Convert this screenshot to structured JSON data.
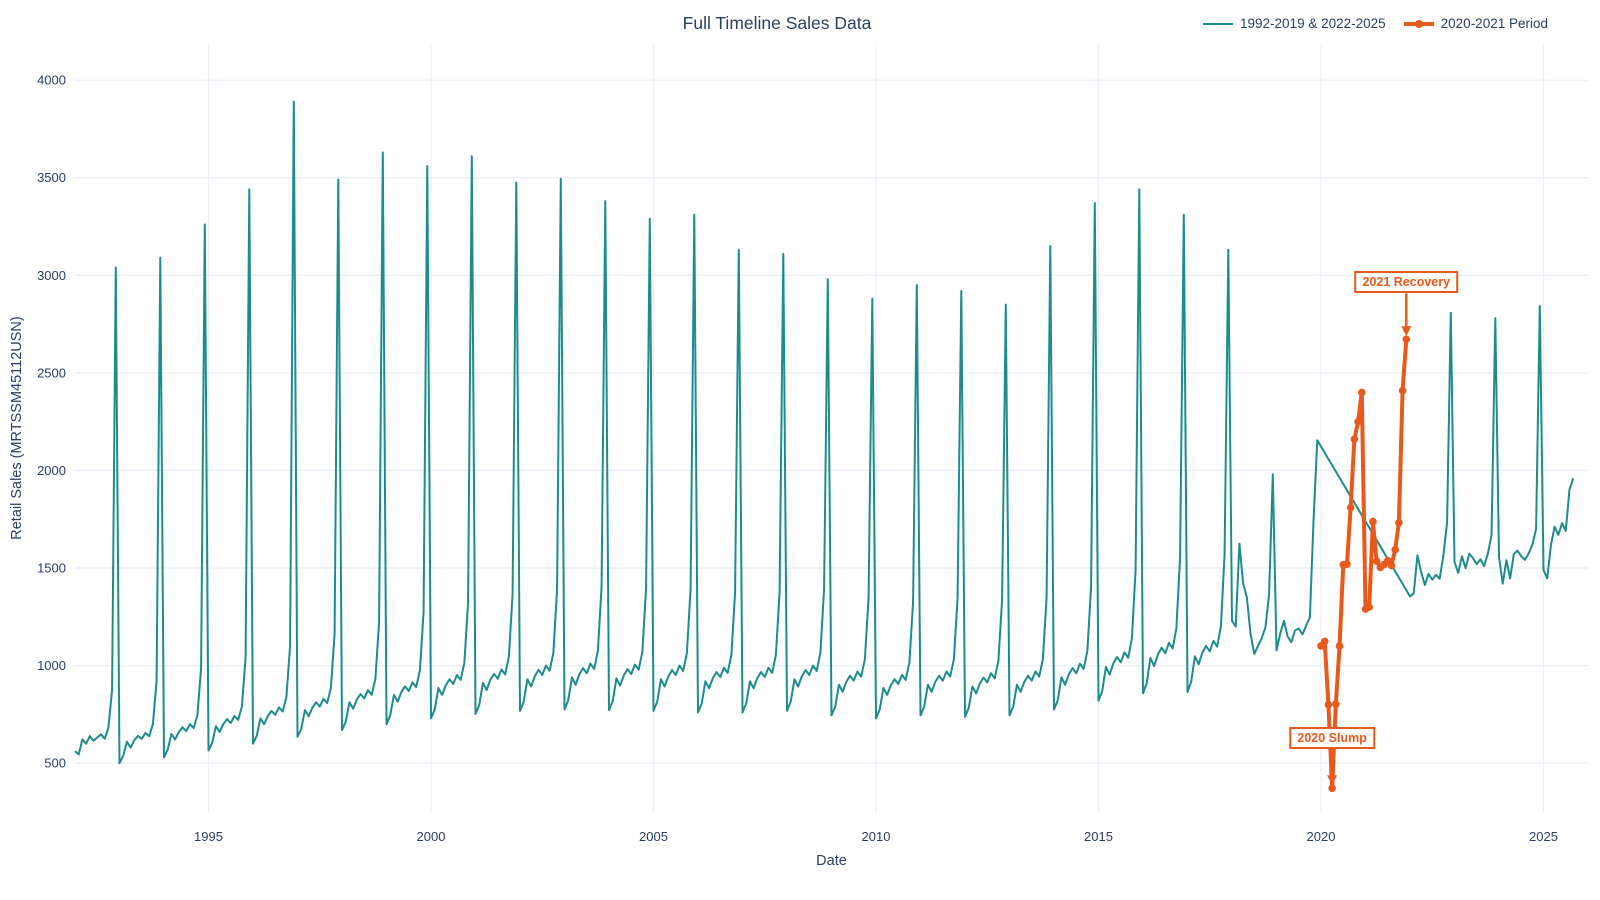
{
  "title": "Full Timeline Sales Data",
  "legend": {
    "items": [
      {
        "label": "1992-2019 & 2022-2025",
        "color": "#1E8C8C",
        "style": "line"
      },
      {
        "label": "2020-2021 Period",
        "color": "#E8591C",
        "style": "line+marker"
      }
    ]
  },
  "axes": {
    "x": {
      "label": "Date",
      "ticks": [
        1995,
        2000,
        2005,
        2010,
        2015,
        2020,
        2025
      ],
      "range": [
        1992,
        2026
      ]
    },
    "y": {
      "label": "Retail Sales (MRTSSM45112USN)",
      "ticks": [
        500,
        1000,
        1500,
        2000,
        2500,
        3000,
        3500,
        4000
      ],
      "range": [
        250,
        4180
      ]
    }
  },
  "colors": {
    "teal": "#1E8C8C",
    "orange": "#E8591C",
    "grid": "#EBF0F8",
    "text": "#2a3f5f",
    "background": "#ffffff"
  },
  "chart_data": {
    "type": "line",
    "title": "Full Timeline Sales Data",
    "xlabel": "Date",
    "ylabel": "Retail Sales (MRTSSM45112USN)",
    "x_unit": "monthly (decimal years)",
    "grid": true,
    "legend_position": "top-right",
    "series": [
      {
        "name": "1992-2019 & 2022-2025",
        "color": "#1E8C8C",
        "width": 2,
        "markers": false,
        "note": "two segments joined by a straight connector across the 2020-2021 gap",
        "segments": [
          {
            "start_year": 1992,
            "values": [
              562,
              545,
              622,
              600,
              639,
              615,
              632,
              648,
              625,
              682,
              875,
              3040,
              500,
              538,
              610,
              580,
              618,
              640,
              625,
              655,
              638,
              700,
              920,
              3090,
              530,
              570,
              650,
              622,
              660,
              684,
              665,
              700,
              680,
              745,
              985,
              3260,
              565,
              605,
              690,
              660,
              700,
              726,
              706,
              742,
              722,
              790,
              1040,
              3440,
              600,
              640,
              730,
              700,
              742,
              768,
              748,
              786,
              765,
              838,
              1100,
              3890,
              635,
              675,
              772,
              740,
              784,
              812,
              790,
              830,
              808,
              885,
              1160,
              3490,
              670,
              712,
              812,
              780,
              826,
              854,
              832,
              874,
              851,
              932,
              1220,
              3630,
              700,
              745,
              850,
              815,
              864,
              894,
              870,
              914,
              890,
              975,
              1275,
              3560,
              730,
              775,
              885,
              850,
              900,
              930,
              906,
              952,
              927,
              1015,
              1325,
              3610,
              752,
              798,
              912,
              875,
              927,
              958,
              933,
              980,
              955,
              1045,
              1365,
              3475,
              768,
              815,
              930,
              893,
              946,
              978,
              952,
              1000,
              974,
              1066,
              1392,
              3495,
              775,
              822,
              940,
              902,
              955,
              987,
              961,
              1010,
              983,
              1076,
              1405,
              3380,
              772,
              818,
              935,
              898,
              950,
              982,
              957,
              1005,
              979,
              1071,
              1398,
              3290,
              768,
              815,
              930,
              893,
              945,
              977,
              952,
              1000,
              973,
              1065,
              1391,
              3310,
              760,
              806,
              920,
              884,
              936,
              967,
              942,
              989,
              963,
              1054,
              1376,
              3130,
              760,
              806,
              920,
              884,
              936,
              967,
              942,
              989,
              963,
              1054,
              1376,
              3110,
              768,
              815,
              930,
              893,
              945,
              977,
              952,
              1000,
              973,
              1065,
              1391,
              2980,
              745,
              790,
              902,
              866,
              917,
              948,
              923,
              970,
              944,
              1033,
              1349,
              2880,
              730,
              775,
              885,
              850,
              900,
              930,
              906,
              952,
              927,
              1015,
              1325,
              2950,
              745,
              790,
              902,
              866,
              917,
              948,
              923,
              970,
              944,
              1033,
              1349,
              2920,
              738,
              783,
              893,
              858,
              908,
              939,
              914,
              961,
              935,
              1024,
              1337,
              2850,
              745,
              790,
              902,
              866,
              917,
              948,
              923,
              970,
              944,
              1033,
              1349,
              3150,
              775,
              822,
              940,
              902,
              955,
              987,
              961,
              1010,
              983,
              1076,
              1405,
              3370,
              820,
              870,
              993,
              954,
              1010,
              1044,
              1017,
              1068,
              1040,
              1139,
              1487,
              3440,
              858,
              910,
              1039,
              998,
              1056,
              1092,
              1063,
              1117,
              1088,
              1191,
              1555,
              3310,
              865,
              918,
              1048,
              1007,
              1066,
              1101,
              1073,
              1127,
              1097,
              1201,
              1569,
              3130,
              1230,
              1200,
              1625,
              1420,
              1350,
              1163,
              1060,
              1100,
              1140,
              1195,
              1365,
              1980,
              1078,
              1163,
              1230,
              1150,
              1120,
              1180,
              1190,
              1160,
              1205,
              1248,
              1750,
              2155
            ]
          },
          {
            "start_year": 2022,
            "values": [
              1355,
              1370,
              1565,
              1480,
              1413,
              1470,
              1440,
              1465,
              1445,
              1565,
              1732,
              2808,
              1532,
              1475,
              1560,
              1500,
              1574,
              1550,
              1520,
              1545,
              1510,
              1574,
              1670,
              2780,
              1556,
              1420,
              1540,
              1447,
              1572,
              1589,
              1560,
              1542,
              1575,
              1620,
              1700,
              2843,
              1491,
              1447,
              1617,
              1712,
              1670,
              1730,
              1690,
              1901,
              1960
            ]
          }
        ]
      },
      {
        "name": "2020-2021 Period",
        "color": "#E8591C",
        "width": 4,
        "markers": true,
        "segments": [
          {
            "start_year": 2020,
            "values": [
              1101,
              1124,
              800,
              372,
              803,
              1100,
              1517,
              1520,
              1810,
              2160,
              2250,
              2400,
              1290,
              1300,
              1738,
              1535,
              1503,
              1518,
              1537,
              1513,
              1594,
              1732,
              2409,
              2672
            ]
          }
        ]
      }
    ],
    "annotations": [
      {
        "label": "2020 Slump",
        "x": 2020.25,
        "y": 372,
        "box_offset": -61
      },
      {
        "label": "2021 Recovery",
        "x": 2021.9167,
        "y": 2672,
        "box_offset": -68
      }
    ]
  }
}
